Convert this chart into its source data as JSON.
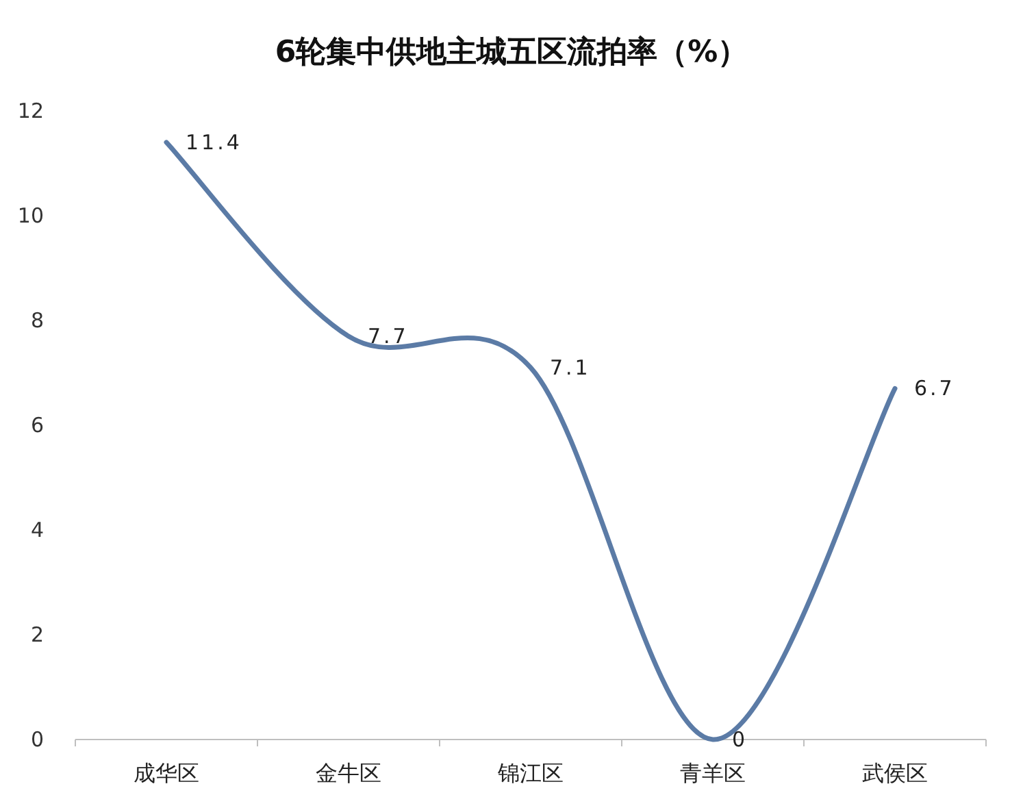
{
  "chart_data": {
    "type": "line",
    "title": "6轮集中供地主城五区流拍率（%）",
    "categories": [
      "成华区",
      "金牛区",
      "锦江区",
      "青羊区",
      "武侯区"
    ],
    "series": [
      {
        "color": "#5b7ba6",
        "values": [
          11.4,
          7.7,
          7.1,
          0,
          6.7
        ]
      }
    ],
    "ylim": [
      0,
      12
    ],
    "yticks": [
      0,
      2,
      4,
      6,
      8,
      10,
      12
    ],
    "grid": false,
    "data_labels": true,
    "marker": "none",
    "line_style": "solid"
  }
}
